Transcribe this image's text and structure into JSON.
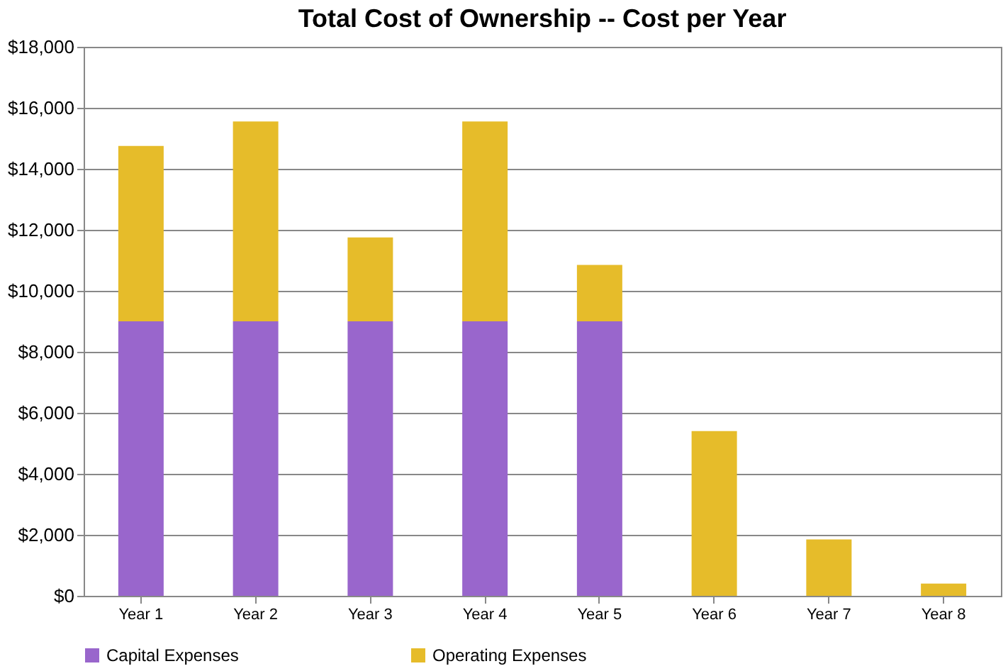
{
  "chart_data": {
    "type": "bar",
    "title": "Total Cost of Ownership -- Cost per Year",
    "categories": [
      "Year 1",
      "Year 2",
      "Year 3",
      "Year 4",
      "Year 5",
      "Year 6",
      "Year 7",
      "Year 8"
    ],
    "stacked": true,
    "series": [
      {
        "name": "Capital Expenses",
        "color": "#9966cc",
        "values": [
          9000,
          9000,
          9000,
          9000,
          9000,
          0,
          0,
          0
        ]
      },
      {
        "name": "Operating Expenses",
        "color": "#e6bc2a",
        "values": [
          5750,
          6550,
          2750,
          6550,
          1850,
          5400,
          1850,
          400
        ]
      }
    ],
    "ylim": [
      0,
      18000
    ],
    "yticks": [
      {
        "value": 0,
        "label": "$0"
      },
      {
        "value": 2000,
        "label": "$2,000"
      },
      {
        "value": 4000,
        "label": "$4,000"
      },
      {
        "value": 6000,
        "label": "$6,000"
      },
      {
        "value": 8000,
        "label": "$8,000"
      },
      {
        "value": 10000,
        "label": "$10,000"
      },
      {
        "value": 12000,
        "label": "$12,000"
      },
      {
        "value": 14000,
        "label": "$14,000"
      },
      {
        "value": 16000,
        "label": "$16,000"
      },
      {
        "value": 18000,
        "label": "$18,000"
      }
    ],
    "grid": "y",
    "legend": "bottom"
  }
}
